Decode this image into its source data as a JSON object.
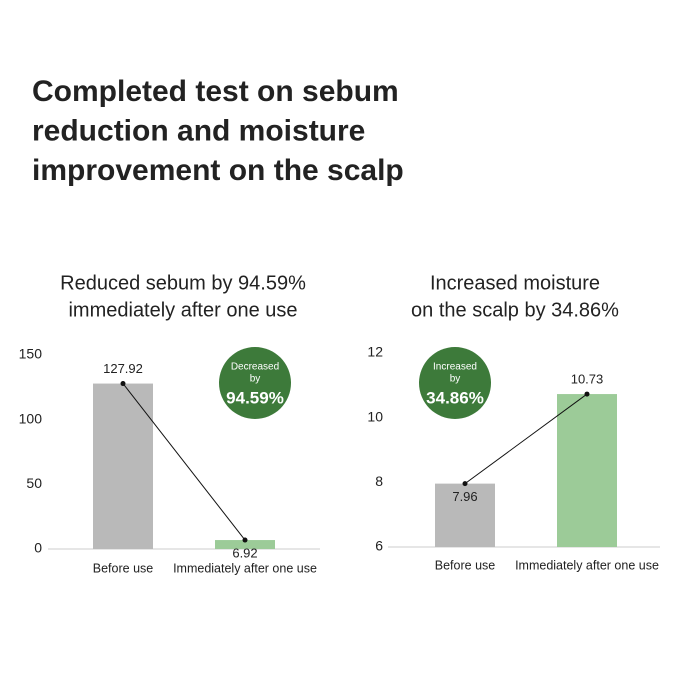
{
  "title": [
    "Completed test on sebum",
    "reduction and moisture",
    "improvement on the scalp"
  ],
  "chart_data": [
    {
      "type": "bar",
      "title": [
        "Reduced sebum by 94.59%",
        "immediately after one use"
      ],
      "categories": [
        "Before use",
        "Immediately after one use"
      ],
      "values": [
        127.92,
        6.92
      ],
      "colors": [
        "#b9b9b9",
        "#9ccb98"
      ],
      "ylim": [
        0,
        150
      ],
      "yticks": [
        0,
        50,
        100,
        150
      ],
      "badge": [
        "Decreased",
        "by",
        "94.59%"
      ],
      "badge_color": "#3d7a3a"
    },
    {
      "type": "bar",
      "title": [
        "Increased moisture",
        "on the scalp by 34.86%"
      ],
      "categories": [
        "Before use",
        "Immediately after one use"
      ],
      "values": [
        7.96,
        10.73
      ],
      "colors": [
        "#b9b9b9",
        "#9ccb98"
      ],
      "ylim": [
        6,
        12
      ],
      "yticks": [
        6,
        8,
        10,
        12
      ],
      "badge": [
        "Increased",
        "by",
        "34.86%"
      ],
      "badge_color": "#3d7a3a"
    }
  ]
}
